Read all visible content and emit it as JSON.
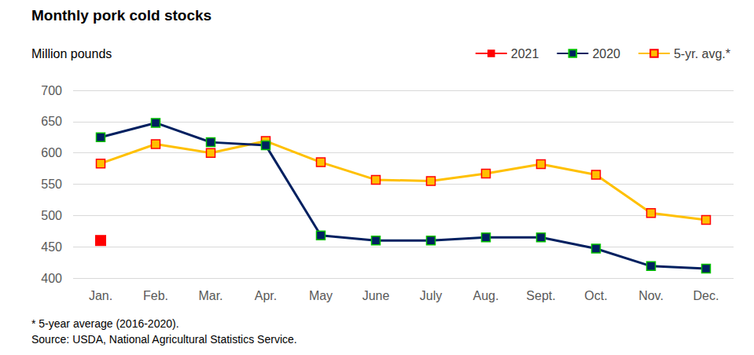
{
  "chart_data": {
    "type": "line",
    "title": "Monthly pork cold stocks",
    "y_label": "Million pounds",
    "notes": [
      "* 5-year average (2016-2020).",
      "Source: USDA, National Agricultural Statistics Service."
    ],
    "categories": [
      "Jan.",
      "Feb.",
      "Mar.",
      "Apr.",
      "May",
      "June",
      "July",
      "Aug.",
      "Sept.",
      "Oct.",
      "Nov.",
      "Dec."
    ],
    "series": [
      {
        "name": "2021",
        "color": "#ff0000",
        "marker": "square",
        "values": [
          460,
          null,
          null,
          null,
          null,
          null,
          null,
          null,
          null,
          null,
          null,
          null
        ]
      },
      {
        "name": "2020",
        "color": "#002060",
        "marker": "square",
        "values": [
          625,
          648,
          617,
          612,
          468,
          460,
          460,
          465,
          465,
          447,
          419,
          415
        ]
      },
      {
        "name": "5-yr. avg.*",
        "color": "#ffc000",
        "marker": "square",
        "values": [
          583,
          614,
          600,
          619,
          585,
          557,
          555,
          567,
          582,
          565,
          504,
          493
        ]
      }
    ],
    "ylim": [
      400,
      700
    ],
    "yticks": [
      400,
      450,
      500,
      550,
      600,
      650,
      700
    ],
    "grid": true,
    "legend": "top-right"
  }
}
